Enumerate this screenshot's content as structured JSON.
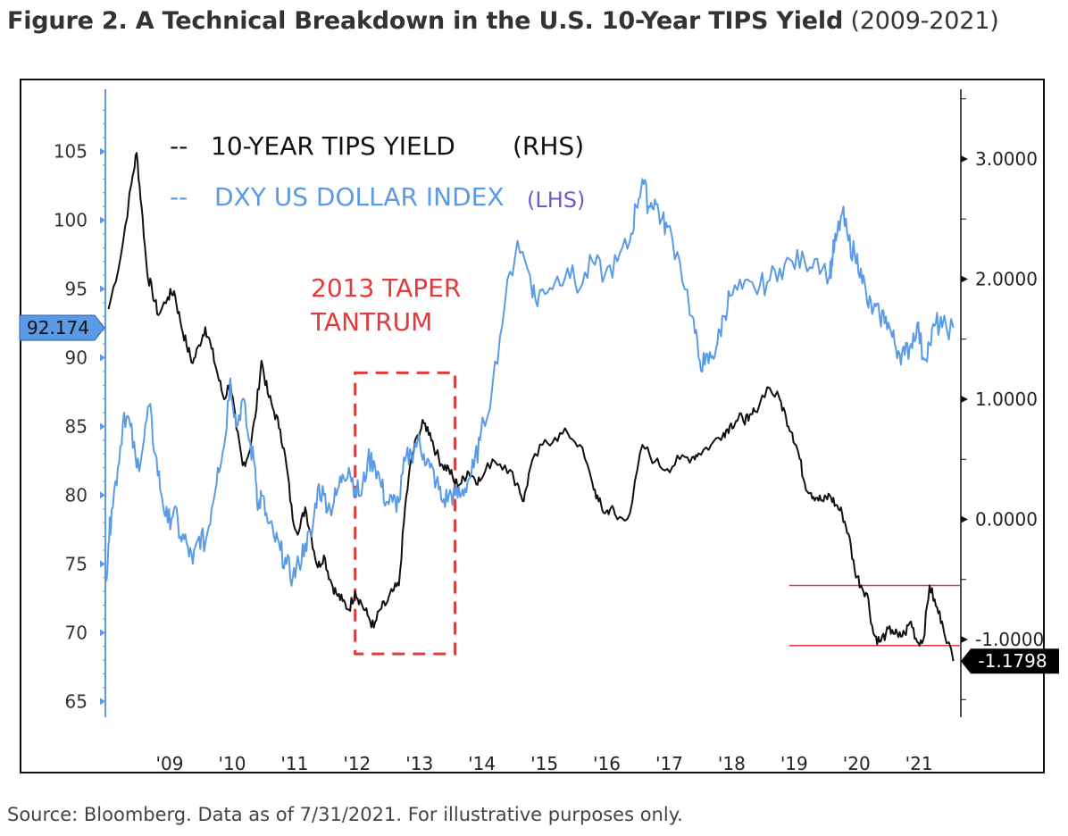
{
  "title": {
    "bold": "Figure 2. A Technical Breakdown in the U.S. 10-Year TIPS Yield",
    "range": "(2009-2021)"
  },
  "source": "Source: Bloomberg. Data as of 7/31/2021. For illustrative purposes only.",
  "colors": {
    "tips": "#111111",
    "dxy": "#5b9be6",
    "annotation": "#e03a3a",
    "lhs_label": "#6a5acd"
  },
  "chart_data": {
    "type": "line",
    "legend": [
      {
        "prefix": "--",
        "text": "10-YEAR TIPS YIELD",
        "suffix": "(RHS)"
      },
      {
        "prefix": "--",
        "text": "DXY US DOLLAR INDEX",
        "suffix": "(LHS)"
      }
    ],
    "x_tick_labels": [
      "'09",
      "'10",
      "'11",
      "'12",
      "'13",
      "'14",
      "'15",
      "'16",
      "'17",
      "'18",
      "'19",
      "'20",
      "'21"
    ],
    "x_range": [
      2008.0,
      2021.7
    ],
    "left_axis": {
      "ylim": [
        64.5,
        109
      ],
      "ticks": [
        "105",
        "100",
        "95",
        "90",
        "85",
        "80",
        "75",
        "70",
        "65"
      ],
      "current_value_label": "92.174"
    },
    "right_axis": {
      "ylim": [
        -1.55,
        3.52
      ],
      "ticks": [
        "3.0000",
        "2.0000",
        "1.0000",
        "0.0000",
        "-1.0000"
      ],
      "current_value_label": "-1.1798"
    },
    "annotation": {
      "line1": "2013 TAPER",
      "line2": "TANTRUM",
      "x_range": [
        2012.0,
        2013.6
      ],
      "y_range_rhs": [
        -1.12,
        1.22
      ]
    },
    "support_lines_rhs": [
      -0.55,
      -1.05
    ],
    "support_lines_x_start": 2018.95,
    "series": [
      {
        "name": "10-YEAR TIPS YIELD",
        "axis": "right",
        "x": [
          2008.05,
          2008.25,
          2008.42,
          2008.5,
          2008.58,
          2008.67,
          2008.75,
          2008.85,
          2009.0,
          2009.1,
          2009.2,
          2009.3,
          2009.4,
          2009.5,
          2009.6,
          2009.7,
          2009.8,
          2009.9,
          2010.0,
          2010.1,
          2010.2,
          2010.3,
          2010.4,
          2010.5,
          2010.6,
          2010.7,
          2010.8,
          2010.9,
          2011.0,
          2011.1,
          2011.2,
          2011.3,
          2011.4,
          2011.5,
          2011.6,
          2011.7,
          2011.8,
          2011.9,
          2012.0,
          2012.1,
          2012.2,
          2012.3,
          2012.4,
          2012.5,
          2012.6,
          2012.7,
          2012.8,
          2012.9,
          2013.0,
          2013.1,
          2013.2,
          2013.3,
          2013.4,
          2013.5,
          2013.6,
          2013.7,
          2013.8,
          2013.9,
          2014.0,
          2014.2,
          2014.4,
          2014.6,
          2014.7,
          2014.8,
          2015.0,
          2015.2,
          2015.4,
          2015.6,
          2015.8,
          2015.9,
          2016.0,
          2016.1,
          2016.2,
          2016.4,
          2016.6,
          2016.8,
          2017.0,
          2017.2,
          2017.4,
          2017.5,
          2017.7,
          2017.9,
          2018.0,
          2018.1,
          2018.2,
          2018.3,
          2018.4,
          2018.6,
          2018.8,
          2018.9,
          2019.0,
          2019.1,
          2019.2,
          2019.3,
          2019.4,
          2019.5,
          2019.6,
          2019.7,
          2019.8,
          2019.9,
          2020.0,
          2020.1,
          2020.2,
          2020.3,
          2020.4,
          2020.5,
          2020.6,
          2020.7,
          2020.8,
          2020.9,
          2021.0,
          2021.1,
          2021.2,
          2021.3,
          2021.4,
          2021.58
        ],
        "values": [
          1.75,
          2.2,
          2.8,
          3.05,
          2.6,
          2.05,
          1.9,
          1.7,
          1.85,
          1.9,
          1.65,
          1.45,
          1.3,
          1.45,
          1.6,
          1.42,
          1.2,
          1.0,
          1.15,
          0.75,
          0.45,
          0.55,
          0.85,
          1.32,
          1.05,
          0.9,
          0.75,
          0.45,
          0.0,
          -0.1,
          0.1,
          -0.15,
          -0.4,
          -0.3,
          -0.5,
          -0.62,
          -0.68,
          -0.75,
          -0.6,
          -0.7,
          -0.8,
          -0.9,
          -0.75,
          -0.7,
          -0.6,
          -0.55,
          0.1,
          0.5,
          0.7,
          0.8,
          0.72,
          0.55,
          0.45,
          0.42,
          0.3,
          0.3,
          0.4,
          0.35,
          0.32,
          0.5,
          0.45,
          0.3,
          0.15,
          0.42,
          0.62,
          0.68,
          0.72,
          0.62,
          0.3,
          0.15,
          0.05,
          0.1,
          0.0,
          0.05,
          0.62,
          0.48,
          0.42,
          0.5,
          0.52,
          0.55,
          0.62,
          0.72,
          0.78,
          0.82,
          0.85,
          0.82,
          0.9,
          1.1,
          1.0,
          0.85,
          0.72,
          0.55,
          0.3,
          0.22,
          0.18,
          0.15,
          0.2,
          0.12,
          0.05,
          -0.12,
          -0.42,
          -0.55,
          -0.62,
          -0.95,
          -1.02,
          -0.95,
          -0.92,
          -0.98,
          -0.95,
          -0.85,
          -1.02,
          -1.0,
          -0.55,
          -0.72,
          -0.85,
          -1.18
        ]
      },
      {
        "name": "DXY US DOLLAR INDEX",
        "axis": "left",
        "x": [
          2008.0,
          2008.05,
          2008.1,
          2008.2,
          2008.3,
          2008.4,
          2008.5,
          2008.6,
          2008.7,
          2008.8,
          2008.9,
          2009.0,
          2009.1,
          2009.2,
          2009.3,
          2009.4,
          2009.5,
          2009.6,
          2009.7,
          2009.8,
          2009.9,
          2010.0,
          2010.1,
          2010.2,
          2010.3,
          2010.4,
          2010.45,
          2010.5,
          2010.6,
          2010.7,
          2010.8,
          2010.9,
          2011.0,
          2011.1,
          2011.2,
          2011.3,
          2011.4,
          2011.5,
          2011.6,
          2011.7,
          2011.8,
          2011.9,
          2012.0,
          2012.1,
          2012.2,
          2012.3,
          2012.4,
          2012.5,
          2012.6,
          2012.7,
          2012.8,
          2012.9,
          2013.0,
          2013.1,
          2013.2,
          2013.3,
          2013.4,
          2013.5,
          2013.6,
          2013.7,
          2013.8,
          2013.9,
          2014.0,
          2014.2,
          2014.4,
          2014.6,
          2014.8,
          2014.9,
          2015.0,
          2015.2,
          2015.4,
          2015.6,
          2015.8,
          2016.0,
          2016.2,
          2016.4,
          2016.5,
          2016.6,
          2016.7,
          2016.8,
          2016.9,
          2017.0,
          2017.2,
          2017.4,
          2017.5,
          2017.6,
          2017.7,
          2017.8,
          2017.9,
          2018.0,
          2018.2,
          2018.4,
          2018.6,
          2018.8,
          2019.0,
          2019.2,
          2019.4,
          2019.6,
          2019.65,
          2019.7,
          2019.8,
          2019.9,
          2020.0,
          2020.1,
          2020.2,
          2020.3,
          2020.4,
          2020.5,
          2020.6,
          2020.7,
          2020.8,
          2020.9,
          2021.0,
          2021.1,
          2021.2,
          2021.3,
          2021.4,
          2021.58
        ],
        "values": [
          73.5,
          76.5,
          79,
          82,
          86,
          85,
          82,
          83.5,
          86.5,
          83,
          80,
          78,
          79,
          77,
          76.5,
          75,
          77,
          76.5,
          79,
          82,
          83.5,
          88.5,
          85,
          87,
          84,
          82,
          79,
          80,
          78,
          77,
          76,
          75,
          74,
          75,
          76.5,
          77,
          80.5,
          80,
          79,
          80,
          81.5,
          82,
          80.5,
          80,
          82.5,
          82.5,
          81,
          79.5,
          79.5,
          79.5,
          82.5,
          83,
          84,
          83,
          82,
          81,
          79.5,
          80,
          80,
          80,
          81,
          82,
          84,
          88,
          94,
          98.5,
          96,
          94,
          95,
          95.5,
          96.5,
          95,
          97,
          96,
          97,
          98.5,
          101,
          103,
          101,
          101.5,
          100,
          99.5,
          97,
          93,
          90,
          89.5,
          90,
          91,
          93,
          94.5,
          95,
          95,
          95.5,
          96.5,
          97,
          97,
          97.2,
          96,
          97.5,
          98.5,
          100.5,
          98.5,
          97.5,
          96.5,
          94,
          93.5,
          93,
          93,
          91.5,
          90.5,
          90.2,
          91,
          92.5,
          90,
          91,
          92.5,
          92.2,
          92.174
        ]
      }
    ]
  }
}
